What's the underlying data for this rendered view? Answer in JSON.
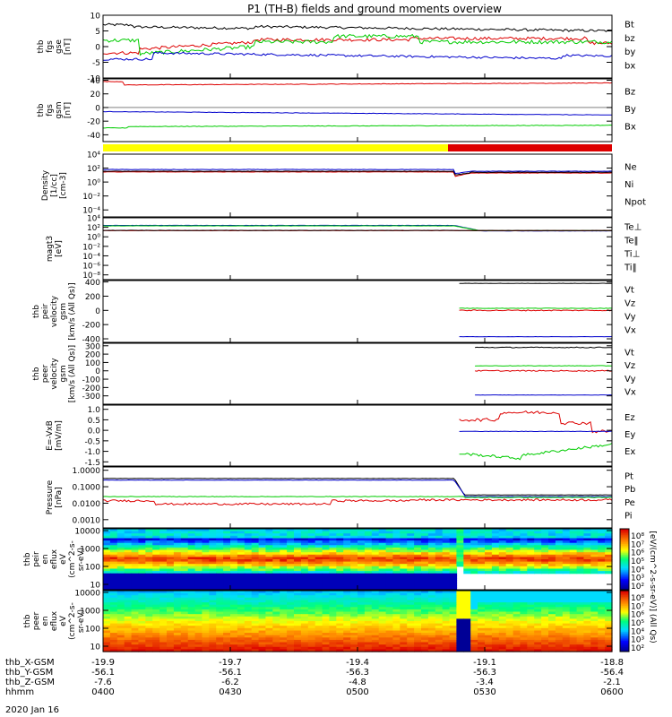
{
  "title": "P1 (TH-B) fields and ground moments overview",
  "date": "2020 Jan 16",
  "colors": {
    "black": "#000000",
    "red": "#dd0000",
    "green": "#00cc00",
    "blue": "#0000cc",
    "yellow": "#ffff00"
  },
  "chart_data": [
    {
      "id": "p1",
      "type": "line",
      "ylabel": [
        "thb",
        "fgs",
        "gse",
        "[nT]"
      ],
      "ylim": [
        -10,
        10
      ],
      "log": false,
      "ticks": [
        {
          "v": 10,
          "label": "10"
        },
        {
          "v": 5,
          "label": "5"
        },
        {
          "v": 0,
          "label": "0"
        },
        {
          "v": -5,
          "label": "-5"
        },
        {
          "v": -10,
          "label": "-10"
        }
      ],
      "legend": [
        {
          "name": "Bt",
          "color": "#000000"
        },
        {
          "name": "bz",
          "color": "#dd0000"
        },
        {
          "name": "by",
          "color": "#00cc00"
        },
        {
          "name": "bx",
          "color": "#0000cc"
        }
      ]
    },
    {
      "id": "p2",
      "type": "line",
      "ylabel": [
        "thb",
        "fgs",
        "gsm",
        "[nT]"
      ],
      "ylim": [
        -50,
        42
      ],
      "log": false,
      "ticks": [
        {
          "v": 40,
          "label": "40"
        },
        {
          "v": 20,
          "label": "20"
        },
        {
          "v": 0,
          "label": "0"
        },
        {
          "v": -20,
          "label": "-20"
        },
        {
          "v": -40,
          "label": "-40"
        }
      ],
      "legend": [
        {
          "name": "Bz",
          "color": "#dd0000"
        },
        {
          "name": "By",
          "color": "#00cc00"
        },
        {
          "name": "Bx",
          "color": "#0000cc"
        }
      ]
    },
    {
      "id": "p3",
      "type": "line",
      "ylabel": [
        "Density",
        "[1/cc]",
        "[cm-3]"
      ],
      "ylim": [
        -5,
        4
      ],
      "log": true,
      "ticks": [
        {
          "v": 4,
          "label": "10⁴"
        },
        {
          "v": 2,
          "label": "10²"
        },
        {
          "v": 0,
          "label": "10⁰"
        },
        {
          "v": -2,
          "label": "10⁻²"
        },
        {
          "v": -4,
          "label": "10⁻⁴"
        }
      ],
      "legend": [
        {
          "name": "Ne",
          "color": "#dd0000"
        },
        {
          "name": "Ni",
          "color": "#000000"
        },
        {
          "name": "Npot",
          "color": "#0000cc"
        }
      ]
    },
    {
      "id": "p4",
      "type": "line",
      "ylabel": [
        "magt3",
        "[eV]"
      ],
      "ylim": [
        -9,
        4
      ],
      "log": true,
      "ticks": [
        {
          "v": 4,
          "label": "10⁴"
        },
        {
          "v": 2,
          "label": "10²"
        },
        {
          "v": 0,
          "label": "10⁰"
        },
        {
          "v": -2,
          "label": "10⁻²"
        },
        {
          "v": -4,
          "label": "10⁻⁴"
        },
        {
          "v": -6,
          "label": "10⁻⁶"
        },
        {
          "v": -8,
          "label": "10⁻⁸"
        }
      ],
      "legend": [
        {
          "name": "Te⊥",
          "color": "#dd0000"
        },
        {
          "name": "Te‖",
          "color": "#000000"
        },
        {
          "name": "Ti⊥",
          "color": "#00cc00"
        },
        {
          "name": "Ti‖",
          "color": "#00cc00"
        }
      ]
    },
    {
      "id": "p5",
      "type": "line",
      "ylabel": [
        "thb",
        "peir",
        "velocity",
        "gsm",
        "[km/s (All Qs)]"
      ],
      "ylim": [
        -450,
        420
      ],
      "log": false,
      "ticks": [
        {
          "v": 400,
          "label": "400"
        },
        {
          "v": 200,
          "label": "200"
        },
        {
          "v": 0,
          "label": "0"
        },
        {
          "v": -200,
          "label": "-200"
        },
        {
          "v": -400,
          "label": "-400"
        }
      ],
      "legend": [
        {
          "name": "Vt",
          "color": "#000000"
        },
        {
          "name": "Vz",
          "color": "#dd0000"
        },
        {
          "name": "Vy",
          "color": "#00cc00"
        },
        {
          "name": "Vx",
          "color": "#0000cc"
        }
      ]
    },
    {
      "id": "p6",
      "type": "line",
      "ylabel": [
        "thb",
        "peer",
        "velocity",
        "gsm",
        "[km/s (All Qs)]"
      ],
      "ylim": [
        -400,
        330
      ],
      "log": false,
      "ticks": [
        {
          "v": 300,
          "label": "300"
        },
        {
          "v": 200,
          "label": "200"
        },
        {
          "v": 100,
          "label": "100"
        },
        {
          "v": 0,
          "label": "0"
        },
        {
          "v": -100,
          "label": "-100"
        },
        {
          "v": -200,
          "label": "-200"
        },
        {
          "v": -300,
          "label": "-300"
        }
      ],
      "legend": [
        {
          "name": "Vt",
          "color": "#000000"
        },
        {
          "name": "Vz",
          "color": "#dd0000"
        },
        {
          "name": "Vy",
          "color": "#00cc00"
        },
        {
          "name": "Vx",
          "color": "#0000cc"
        }
      ]
    },
    {
      "id": "p7",
      "type": "line",
      "ylabel": [
        "E=-VxB",
        "[mV/m]"
      ],
      "ylim": [
        -1.7,
        1.2
      ],
      "log": false,
      "ticks": [
        {
          "v": 1.0,
          "label": "1.0"
        },
        {
          "v": 0.5,
          "label": "0.5"
        },
        {
          "v": 0,
          "label": "0.0"
        },
        {
          "v": -0.5,
          "label": "-0.5"
        },
        {
          "v": -1.0,
          "label": "-1.0"
        },
        {
          "v": -1.5,
          "label": "-1.5"
        }
      ],
      "legend": [
        {
          "name": "Ez",
          "color": "#dd0000"
        },
        {
          "name": "Ey",
          "color": "#00cc00"
        },
        {
          "name": "Ex",
          "color": "#0000cc"
        }
      ]
    },
    {
      "id": "p8",
      "type": "line",
      "ylabel": [
        "Pressure",
        "[nPa]"
      ],
      "ylim": [
        -3.5,
        0.2
      ],
      "log": true,
      "ticks": [
        {
          "v": 0,
          "label": "1.0000"
        },
        {
          "v": -1,
          "label": "0.1000"
        },
        {
          "v": -2,
          "label": "0.0100"
        },
        {
          "v": -3,
          "label": "0.0010"
        }
      ],
      "legend": [
        {
          "name": "Pt",
          "color": "#000000"
        },
        {
          "name": "Pb",
          "color": "#dd0000"
        },
        {
          "name": "Pe",
          "color": "#00cc00"
        },
        {
          "name": "Pi",
          "color": "#0000cc"
        }
      ]
    },
    {
      "id": "p9",
      "type": "heatmap",
      "ylabel": [
        "thb",
        "peir",
        "en",
        "eflux",
        "eV",
        "(cm^2-s-",
        "sr-eV)"
      ],
      "ylim": [
        0.7,
        4.1
      ],
      "log": true,
      "ticks": [
        {
          "v": 4,
          "label": "10000"
        },
        {
          "v": 3,
          "label": "1000"
        },
        {
          "v": 2,
          "label": "100"
        },
        {
          "v": 1,
          "label": "10"
        }
      ]
    },
    {
      "id": "p10",
      "type": "heatmap",
      "ylabel": [
        "thb",
        "peer",
        "en",
        "eflux",
        "eV",
        "(cm^2-s-",
        "sr-eV)"
      ],
      "ylim": [
        0.7,
        4.1
      ],
      "log": true,
      "ticks": [
        {
          "v": 4,
          "label": "10000"
        },
        {
          "v": 3,
          "label": "1000"
        },
        {
          "v": 2,
          "label": "100"
        },
        {
          "v": 1,
          "label": "10"
        }
      ]
    }
  ],
  "colorbar": {
    "label": "[eV/(cm^2-s-sr-eV)] (All Qs)",
    "ticks": [
      "10⁸",
      "10⁷",
      "10⁶",
      "10⁵",
      "10⁴",
      "10³",
      "10²"
    ]
  },
  "xaxis": {
    "rows": [
      {
        "name": "thb_X-GSM",
        "values": [
          "-19.9",
          "-19.7",
          "-19.4",
          "-19.1",
          "-18.8"
        ]
      },
      {
        "name": "thb_Y-GSM",
        "values": [
          "-56.1",
          "-56.1",
          "-56.3",
          "-56.3",
          "-56.4"
        ]
      },
      {
        "name": "thb_Z-GSM",
        "values": [
          "-7.6",
          "-6.2",
          "-4.8",
          "-3.4",
          "-2.1"
        ]
      },
      {
        "name": "hhmm",
        "values": [
          "0400",
          "0430",
          "0500",
          "0530",
          "0600"
        ]
      }
    ],
    "ticks": [
      "0400",
      "0430",
      "0500",
      "0530",
      "0600"
    ],
    "range": [
      "0400",
      "0600"
    ]
  }
}
